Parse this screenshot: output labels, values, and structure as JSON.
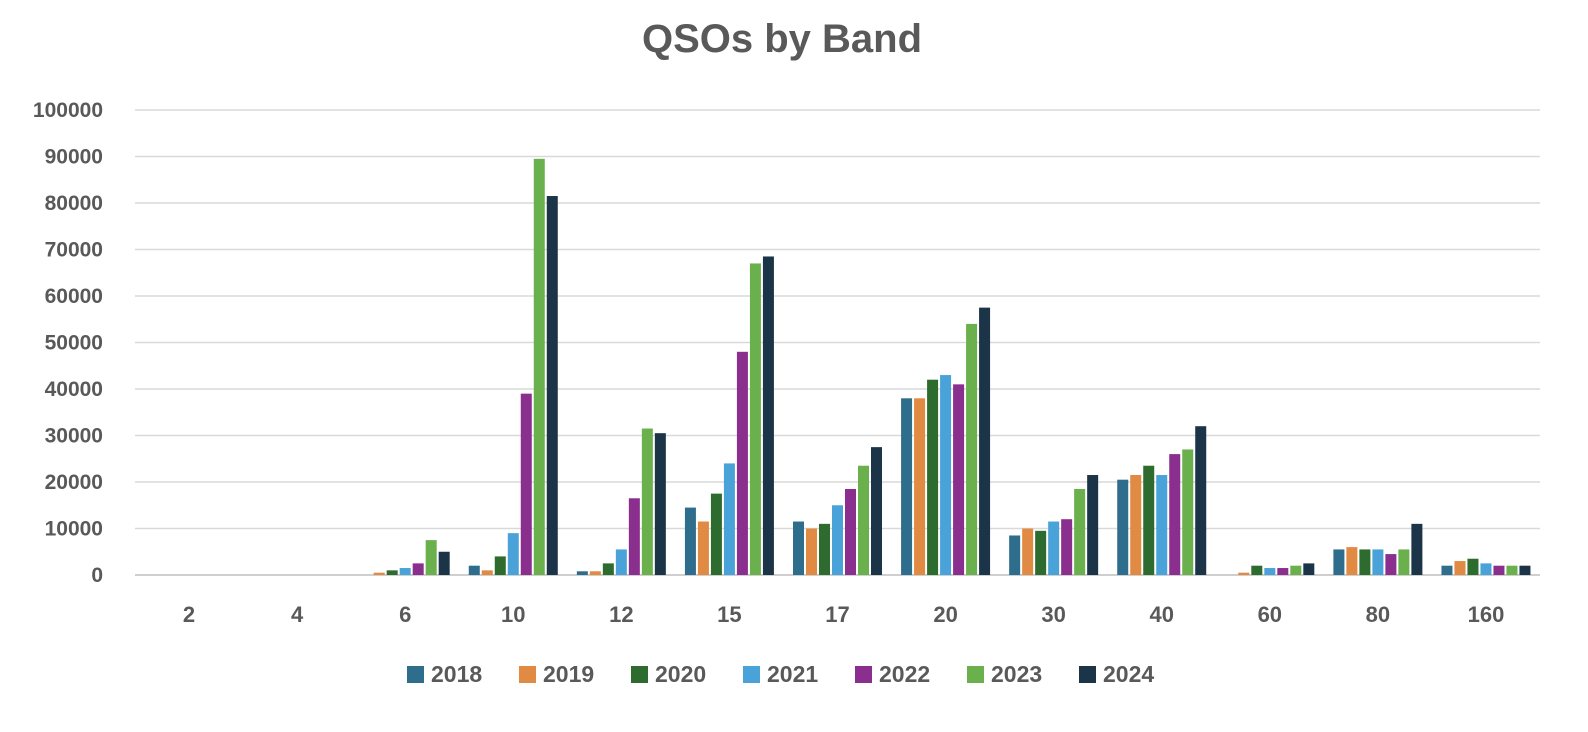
{
  "chart_data": {
    "type": "bar",
    "title": "QSOs by Band",
    "xlabel": "",
    "ylabel": "",
    "ylim": [
      0,
      100000
    ],
    "yticks": [
      "0",
      "10000",
      "20000",
      "30000",
      "40000",
      "50000",
      "60000",
      "70000",
      "80000",
      "90000",
      "100000"
    ],
    "grid": true,
    "legend_position": "bottom",
    "categories": [
      "2",
      "4",
      "6",
      "10",
      "12",
      "15",
      "17",
      "20",
      "30",
      "40",
      "60",
      "80",
      "160"
    ],
    "series": [
      {
        "name": "2018",
        "color": "#2f6d8c",
        "values": [
          0,
          0,
          0,
          2000,
          800,
          14500,
          11500,
          38000,
          8500,
          20500,
          0,
          5500,
          2000
        ]
      },
      {
        "name": "2019",
        "color": "#e08a43",
        "values": [
          0,
          0,
          500,
          1000,
          800,
          11500,
          10000,
          38000,
          10000,
          21500,
          500,
          6000,
          3000
        ]
      },
      {
        "name": "2020",
        "color": "#2e6b2e",
        "values": [
          0,
          0,
          1000,
          4000,
          2500,
          17500,
          11000,
          42000,
          9500,
          23500,
          2000,
          5500,
          3500
        ]
      },
      {
        "name": "2021",
        "color": "#4aa3d8",
        "values": [
          0,
          0,
          1500,
          9000,
          5500,
          24000,
          15000,
          43000,
          11500,
          21500,
          1500,
          5500,
          2500
        ]
      },
      {
        "name": "2022",
        "color": "#8b2f8f",
        "values": [
          0,
          0,
          2500,
          39000,
          16500,
          48000,
          18500,
          41000,
          12000,
          26000,
          1500,
          4500,
          2000
        ]
      },
      {
        "name": "2023",
        "color": "#6ab04c",
        "values": [
          0,
          0,
          7500,
          89500,
          31500,
          67000,
          23500,
          54000,
          18500,
          27000,
          2000,
          5500,
          2000
        ]
      },
      {
        "name": "2024",
        "color": "#1c3447",
        "values": [
          0,
          0,
          5000,
          81500,
          30500,
          68500,
          27500,
          57500,
          21500,
          32000,
          2500,
          11000,
          2000
        ]
      }
    ]
  }
}
